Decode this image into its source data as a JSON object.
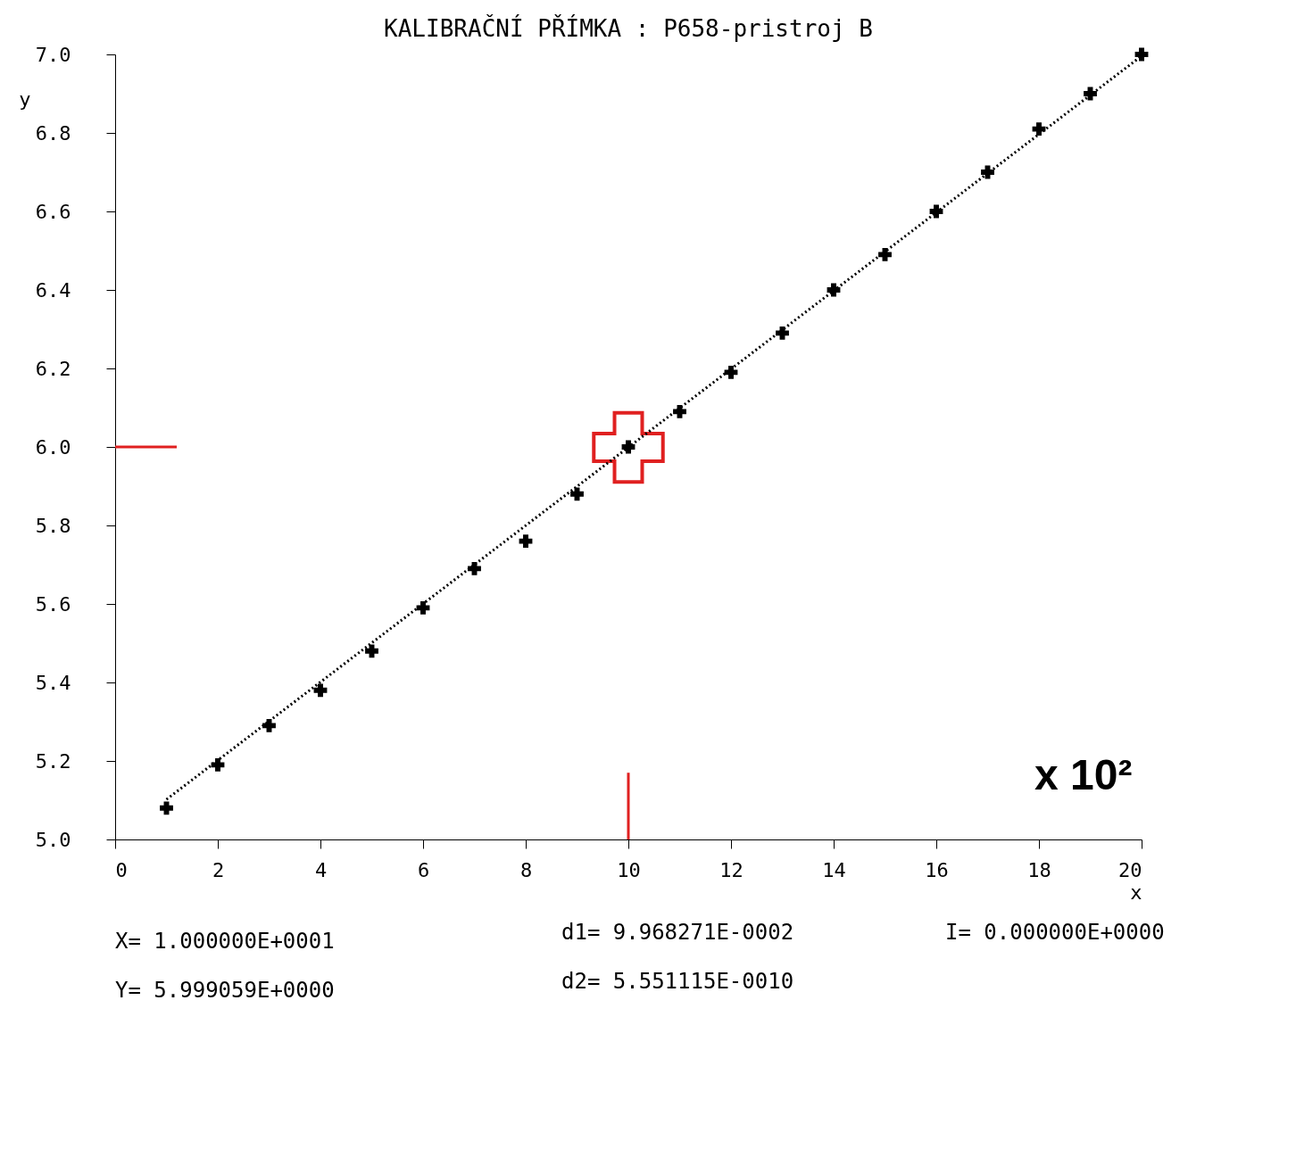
{
  "chart_data": {
    "type": "scatter",
    "title": "KALIBRAČNÍ PŘÍMKA : P658-pristroj B",
    "xlabel": "x",
    "ylabel": "y",
    "xlim": [
      0,
      20
    ],
    "ylim": [
      5.0,
      7.0
    ],
    "xticks": [
      0,
      2,
      4,
      6,
      8,
      10,
      12,
      14,
      16,
      18,
      20
    ],
    "yticks": [
      {
        "value": 5.0,
        "label": "5.0"
      },
      {
        "value": 5.2,
        "label": "5.2"
      },
      {
        "value": 5.4,
        "label": "5.4"
      },
      {
        "value": 5.6,
        "label": "5.6"
      },
      {
        "value": 5.8,
        "label": "5.8"
      },
      {
        "value": 6.0,
        "label": "6.0"
      },
      {
        "value": 6.2,
        "label": "6.2"
      },
      {
        "value": 6.4,
        "label": "6.4"
      },
      {
        "value": 6.6,
        "label": "6.6"
      },
      {
        "value": 6.8,
        "label": "6.8"
      },
      {
        "value": 7.0,
        "label": "7.0"
      }
    ],
    "grid": false,
    "series": [
      {
        "type": "scatter",
        "marker": "cross",
        "color": "#000000",
        "x": [
          1,
          2,
          3,
          4,
          5,
          6,
          7,
          8,
          9,
          10,
          11,
          12,
          13,
          14,
          15,
          16,
          17,
          18,
          19,
          20
        ],
        "values": [
          5.08,
          5.19,
          5.29,
          5.38,
          5.48,
          5.59,
          5.69,
          5.76,
          5.88,
          6.0,
          6.09,
          6.19,
          6.29,
          6.4,
          6.49,
          6.6,
          6.7,
          6.81,
          6.9,
          7.0
        ]
      },
      {
        "type": "line",
        "line_style": "dotted",
        "color": "#000000",
        "x": [
          1,
          20
        ],
        "values": [
          5.102,
          6.996
        ]
      },
      {
        "type": "scatter",
        "marker": "cross",
        "color": "#e02020",
        "x": [
          10
        ],
        "values": [
          5.999
        ]
      },
      {
        "type": "line",
        "line_style": "solid",
        "color": "#e02020",
        "x": [
          0,
          1.2
        ],
        "values": [
          6.0,
          6.0
        ]
      },
      {
        "type": "line",
        "line_style": "solid",
        "color": "#e02020",
        "x": [
          10,
          10
        ],
        "values": [
          5.17,
          5.0
        ]
      }
    ],
    "annotations": [
      "x 10²",
      "X= 1.000000E+0001",
      "Y= 5.999059E+0000",
      "d1= 9.968271E-0002",
      "d2= 5.551115E-0010",
      "I= 0.000000E+0000"
    ]
  }
}
